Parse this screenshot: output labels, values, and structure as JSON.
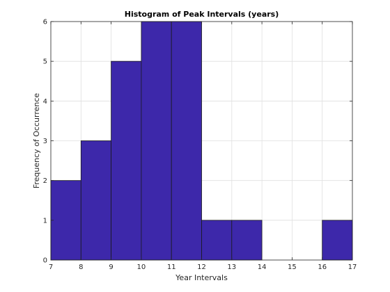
{
  "chart_data": {
    "type": "bar",
    "title": "Histogram of Peak Intervals (years)",
    "xlabel": "Year Intervals",
    "ylabel": "Frequency of Occurrence",
    "bins": [
      {
        "start": 7,
        "end": 8,
        "count": 2
      },
      {
        "start": 8,
        "end": 9,
        "count": 3
      },
      {
        "start": 9,
        "end": 10,
        "count": 5
      },
      {
        "start": 10,
        "end": 11,
        "count": 6
      },
      {
        "start": 11,
        "end": 12,
        "count": 6
      },
      {
        "start": 12,
        "end": 13,
        "count": 1
      },
      {
        "start": 13,
        "end": 14,
        "count": 1
      },
      {
        "start": 14,
        "end": 15,
        "count": 0
      },
      {
        "start": 15,
        "end": 16,
        "count": 0
      },
      {
        "start": 16,
        "end": 17,
        "count": 1
      }
    ],
    "xlim": [
      7,
      17
    ],
    "ylim": [
      0,
      6
    ],
    "xticks": [
      "7",
      "8",
      "9",
      "10",
      "11",
      "12",
      "13",
      "14",
      "15",
      "16",
      "17"
    ],
    "yticks": [
      "0",
      "1",
      "2",
      "3",
      "4",
      "5",
      "6"
    ],
    "grid": true,
    "bar_color": "#3d28aa",
    "edge_color": "#1a1a1a"
  }
}
